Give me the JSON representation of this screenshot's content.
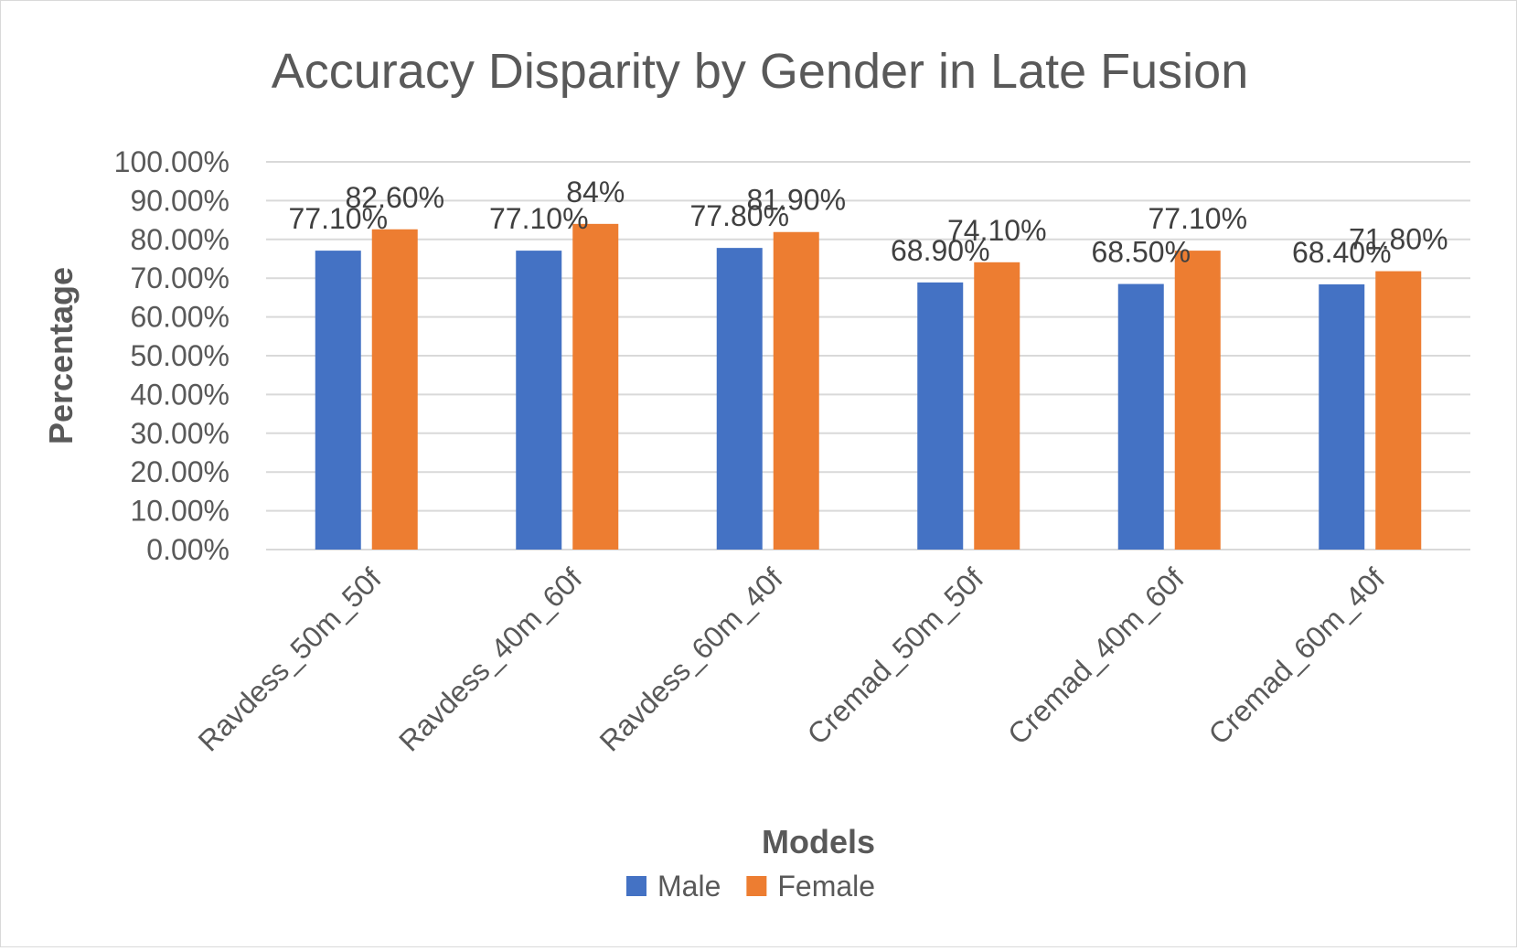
{
  "chart_data": {
    "type": "bar",
    "title": "Accuracy Disparity by Gender in Late Fusion",
    "xlabel": "Models",
    "ylabel": "Percentage",
    "ylim": [
      0,
      100
    ],
    "yticks": [
      "0.00%",
      "10.00%",
      "20.00%",
      "30.00%",
      "40.00%",
      "50.00%",
      "60.00%",
      "70.00%",
      "80.00%",
      "90.00%",
      "100.00%"
    ],
    "categories": [
      "Ravdess_50m_50f",
      "Ravdess_40m_60f",
      "Ravdess_60m_40f",
      "Cremad_50m_50f",
      "Cremad_40m_60f",
      "Cremad_60m_40f"
    ],
    "series": [
      {
        "name": "Male",
        "color": "#4472c4",
        "values": [
          77.1,
          77.1,
          77.8,
          68.9,
          68.5,
          68.4
        ],
        "labels": [
          "77.10%",
          "77.10%",
          "77.80%",
          "68.90%",
          "68.50%",
          "68.40%"
        ]
      },
      {
        "name": "Female",
        "color": "#ed7d31",
        "values": [
          82.6,
          84,
          81.9,
          74.1,
          77.1,
          71.8
        ],
        "labels": [
          "82.60%",
          "84%",
          "81.90%",
          "74.10%",
          "77.10%",
          "71.80%"
        ]
      }
    ],
    "grid": true,
    "legend": "bottom"
  }
}
